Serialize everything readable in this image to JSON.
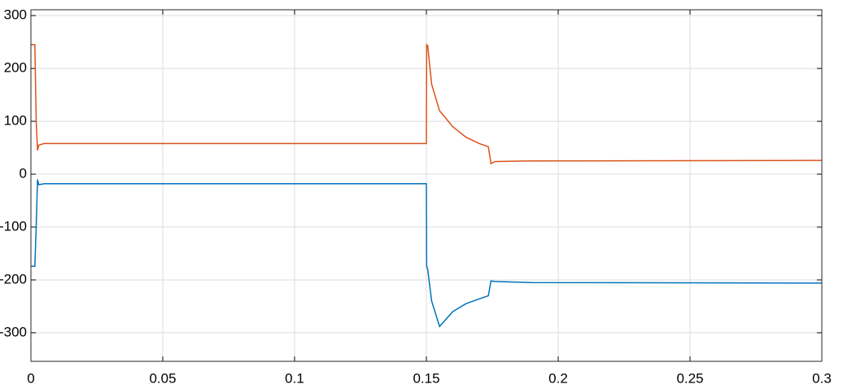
{
  "chart_data": {
    "type": "line",
    "x": [
      0,
      0.0015,
      0.002,
      0.0025,
      0.003,
      0.005,
      0.15,
      0.1501,
      0.1505,
      0.152,
      0.155,
      0.16,
      0.165,
      0.17,
      0.1735,
      0.1745,
      0.176,
      0.19,
      0.3
    ],
    "series": [
      {
        "color": "#d95319",
        "values": [
          245,
          245,
          100,
          45,
          55,
          58,
          58,
          245,
          243,
          170,
          120,
          90,
          70,
          58,
          52,
          20,
          24,
          25,
          26
        ]
      },
      {
        "color": "#0072bd",
        "values": [
          -174,
          -174,
          -100,
          -10,
          -20,
          -18,
          -18,
          -174,
          -180,
          -240,
          -288,
          -260,
          -245,
          -236,
          -230,
          -202,
          -203,
          -205,
          -206
        ]
      }
    ],
    "xlim": [
      0,
      0.3
    ],
    "xticks": [
      0,
      0.05,
      0.1,
      0.15,
      0.2,
      0.25,
      0.3
    ],
    "ylim": [
      -354,
      311
    ],
    "yticks": [
      -300,
      -200,
      -100,
      0,
      100,
      200,
      300
    ],
    "grid": true
  }
}
